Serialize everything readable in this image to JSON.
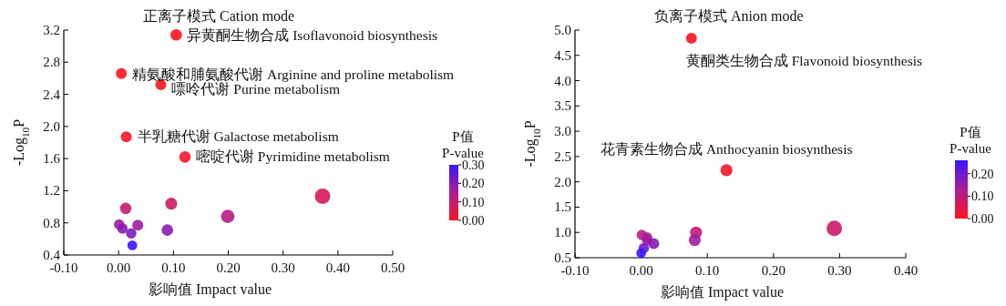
{
  "chart_data": [
    {
      "type": "bubble",
      "title": "正离子模式 Cation mode",
      "xlabel": "影响值 Impact value",
      "ylabel": "-Log$_{10}$P",
      "clabel": "P值\nP-value",
      "x": [
        0.105,
        0.005,
        0.077,
        0.014,
        0.121,
        0.372,
        0.096,
        0.013,
        0.199,
        0.001,
        0.007,
        0.035,
        0.023,
        0.089,
        0.025
      ],
      "values": [
        3.14,
        2.66,
        2.52,
        1.87,
        1.62,
        1.13,
        1.04,
        0.98,
        0.88,
        0.78,
        0.73,
        0.77,
        0.67,
        0.71,
        0.52
      ],
      "sizes": [
        0.55,
        0.5,
        0.5,
        0.5,
        0.55,
        1,
        0.6,
        0.55,
        0.75,
        0.45,
        0.45,
        0.5,
        0.45,
        0.55,
        0.4
      ],
      "cvalues": [
        0.0,
        0.0,
        0.0,
        0.01,
        0.02,
        0.07,
        0.09,
        0.1,
        0.13,
        0.17,
        0.19,
        0.17,
        0.21,
        0.19,
        0.3
      ],
      "xlim": [
        -0.1,
        0.5
      ],
      "xticks": [
        {
          "value": -0.1,
          "label": "-0.10"
        },
        {
          "value": 0,
          "label": "0.00"
        },
        {
          "value": 0.1,
          "label": "0.10"
        },
        {
          "value": 0.2,
          "label": "0.20"
        },
        {
          "value": 0.3,
          "label": "0.30"
        },
        {
          "value": 0.4,
          "label": "0.40"
        },
        {
          "value": 0.5,
          "label": "0.50"
        }
      ],
      "ylim": [
        0.4,
        3.2
      ],
      "yticks": [
        0.4,
        0.8,
        1.2,
        1.6,
        {
          "value": 2,
          "label": "2.0"
        },
        2.4,
        2.8,
        3.2
      ],
      "clim": [
        0,
        0.3
      ],
      "cticks": [
        {
          "value": 0,
          "label": "0.00"
        },
        {
          "value": 0.1,
          "label": "0.10"
        },
        {
          "value": 0.2,
          "label": "0.20"
        },
        {
          "value": 0.3,
          "label": "0.30"
        }
      ],
      "annotations": [
        {
          "text": "异黄酮生物合成 Isoflavonoid biosynthesis",
          "x": 0.105,
          "y": 3.14
        },
        {
          "text": "精氨酸和脯氨酸代谢 Arginine and proline metabolism",
          "x": 0.005,
          "y": 2.66
        },
        {
          "text": "嘌呤代谢 Purine metabolism",
          "x": 0.077,
          "y": 2.52
        },
        {
          "text": "半乳糖代谢 Galactose metabolism",
          "x": 0.014,
          "y": 1.87
        },
        {
          "text": "嘧啶代谢 Pyrimidine metabolism",
          "x": 0.121,
          "y": 1.62
        }
      ],
      "grid": false
    },
    {
      "type": "bubble",
      "title": "负离子模式 Anion mode",
      "xlabel": "影响值 Impact value",
      "ylabel": "-Log$_{10}$P",
      "clabel": "P值\nP-value",
      "x": [
        0.076,
        0.129,
        0.292,
        0.083,
        0.081,
        0.001,
        0.009,
        0.009,
        0.019,
        0.004,
        0.0
      ],
      "values": [
        4.84,
        2.23,
        1.08,
        1.0,
        0.85,
        0.95,
        0.9,
        0.85,
        0.78,
        0.69,
        0.59
      ],
      "sizes": [
        0.5,
        0.6,
        1,
        0.6,
        0.6,
        0.45,
        0.45,
        0.45,
        0.5,
        0.45,
        0.4
      ],
      "cvalues": [
        0.0,
        0.01,
        0.08,
        0.1,
        0.14,
        0.11,
        0.13,
        0.14,
        0.17,
        0.2,
        0.26
      ],
      "xlim": [
        -0.1,
        0.4
      ],
      "xticks": [
        {
          "value": -0.1,
          "label": "-0.10"
        },
        {
          "value": 0,
          "label": "0.00"
        },
        {
          "value": 0.1,
          "label": "0.10"
        },
        {
          "value": 0.2,
          "label": "0.20"
        },
        {
          "value": 0.3,
          "label": "0.30"
        },
        {
          "value": 0.4,
          "label": "0.40"
        }
      ],
      "ylim": [
        0.5,
        5.0
      ],
      "yticks": [
        0.5,
        {
          "value": 1,
          "label": "1.0"
        },
        1.5,
        {
          "value": 2,
          "label": "2.0"
        },
        2.5,
        {
          "value": 3,
          "label": "3.0"
        },
        3.5,
        {
          "value": 4,
          "label": "4.0"
        },
        4.5,
        {
          "value": 5,
          "label": "5.0"
        }
      ],
      "clim": [
        0,
        0.26
      ],
      "cticks": [
        {
          "value": 0,
          "label": "0.00"
        },
        {
          "value": 0.1,
          "label": "0.10"
        },
        {
          "value": 0.2,
          "label": "0.20"
        }
      ],
      "annotations": [
        {
          "text": "黄酮类生物合成 Flavonoid biosynthesis",
          "x": 0.076,
          "y": 4.84
        },
        {
          "text": "花青素生物合成 Anthocyanin biosynthesis",
          "x": 0.129,
          "y": 2.23
        }
      ],
      "grid": false
    }
  ]
}
